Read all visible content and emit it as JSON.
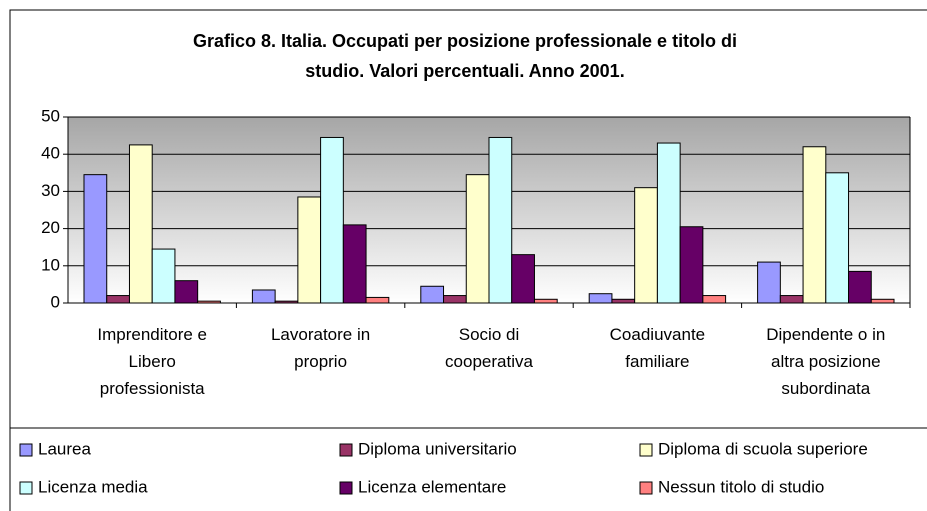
{
  "chart_data": {
    "type": "bar",
    "title": [
      "Grafico 8. Italia. Occupati per posizione professionale e titolo di",
      "studio. Valori percentuali. Anno 2001."
    ],
    "categories": [
      "Imprenditore e Libero professionista",
      "Lavoratore in proprio",
      "Socio di cooperativa",
      "Coadiuvante familiare",
      "Dipendente o in altra posizione subordinata"
    ],
    "series": [
      {
        "name": "Laurea",
        "color": "#9999ff",
        "values": [
          34.5,
          3.5,
          4.5,
          2.5,
          11
        ]
      },
      {
        "name": "Diploma universitario",
        "color": "#993366",
        "values": [
          2,
          0.5,
          2,
          1,
          2
        ]
      },
      {
        "name": "Diploma di scuola superiore",
        "color": "#ffffcc",
        "values": [
          42.5,
          28.5,
          34.5,
          31,
          42
        ]
      },
      {
        "name": "Licenza media",
        "color": "#ccffff",
        "values": [
          14.5,
          44.5,
          44.5,
          43,
          35
        ]
      },
      {
        "name": "Licenza elementare",
        "color": "#660066",
        "values": [
          6,
          21,
          13,
          20.5,
          8.5
        ]
      },
      {
        "name": "Nessun titolo di studio",
        "color": "#ff8080",
        "values": [
          0.5,
          1.5,
          1,
          2,
          1
        ]
      }
    ],
    "ylim": [
      0,
      50
    ],
    "yticks": [
      0,
      10,
      20,
      30,
      40,
      50
    ],
    "grid": true,
    "legend": "bottom"
  }
}
